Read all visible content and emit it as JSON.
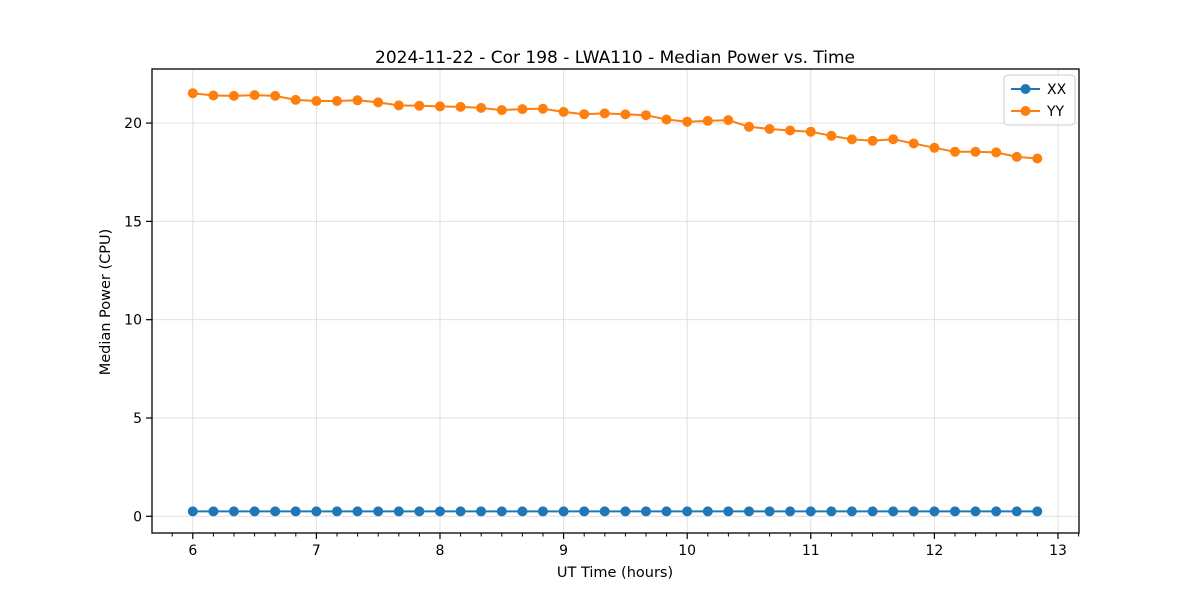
{
  "figure": {
    "background": "#ffffff",
    "spine_color": "#000000",
    "grid_color": "#e0e0e0"
  },
  "chart_data": {
    "type": "line",
    "title": "2024-11-22 - Cor 198 - LWA110 - Median Power vs. Time",
    "xlabel": "UT Time (hours)",
    "ylabel": "Median Power (CPU)",
    "grid": true,
    "legend_position": "upper right",
    "xlim": [
      5.67,
      13.17
    ],
    "ylim": [
      -0.85,
      22.75
    ],
    "x_ticks": [
      6,
      7,
      8,
      9,
      10,
      11,
      12,
      13
    ],
    "y_ticks": [
      0,
      5,
      10,
      15,
      20
    ],
    "x_minor_step": 0.16667,
    "x": [
      6.0,
      6.167,
      6.333,
      6.5,
      6.667,
      6.833,
      7.0,
      7.167,
      7.333,
      7.5,
      7.667,
      7.833,
      8.0,
      8.167,
      8.333,
      8.5,
      8.667,
      8.833,
      9.0,
      9.167,
      9.333,
      9.5,
      9.667,
      9.833,
      10.0,
      10.167,
      10.333,
      10.5,
      10.667,
      10.833,
      11.0,
      11.167,
      11.333,
      11.5,
      11.667,
      11.833,
      12.0,
      12.167,
      12.333,
      12.5,
      12.667,
      12.833
    ],
    "series": [
      {
        "name": "XX",
        "color": "#1f77b4",
        "values": [
          0.25,
          0.25,
          0.25,
          0.25,
          0.25,
          0.25,
          0.25,
          0.25,
          0.25,
          0.25,
          0.25,
          0.25,
          0.25,
          0.25,
          0.25,
          0.25,
          0.25,
          0.25,
          0.25,
          0.25,
          0.25,
          0.25,
          0.25,
          0.25,
          0.25,
          0.25,
          0.25,
          0.25,
          0.25,
          0.25,
          0.25,
          0.25,
          0.25,
          0.25,
          0.25,
          0.25,
          0.25,
          0.25,
          0.25,
          0.25,
          0.25,
          0.25
        ]
      },
      {
        "name": "YY",
        "color": "#ff7f0e",
        "values": [
          21.52,
          21.4,
          21.38,
          21.42,
          21.38,
          21.18,
          21.12,
          21.12,
          21.16,
          21.05,
          20.9,
          20.88,
          20.85,
          20.82,
          20.77,
          20.66,
          20.71,
          20.73,
          20.57,
          20.45,
          20.49,
          20.44,
          20.4,
          20.18,
          20.07,
          20.11,
          20.15,
          19.81,
          19.7,
          19.62,
          19.56,
          19.35,
          19.17,
          19.1,
          19.18,
          18.96,
          18.74,
          18.54,
          18.54,
          18.51,
          18.28,
          18.2
        ]
      }
    ]
  }
}
